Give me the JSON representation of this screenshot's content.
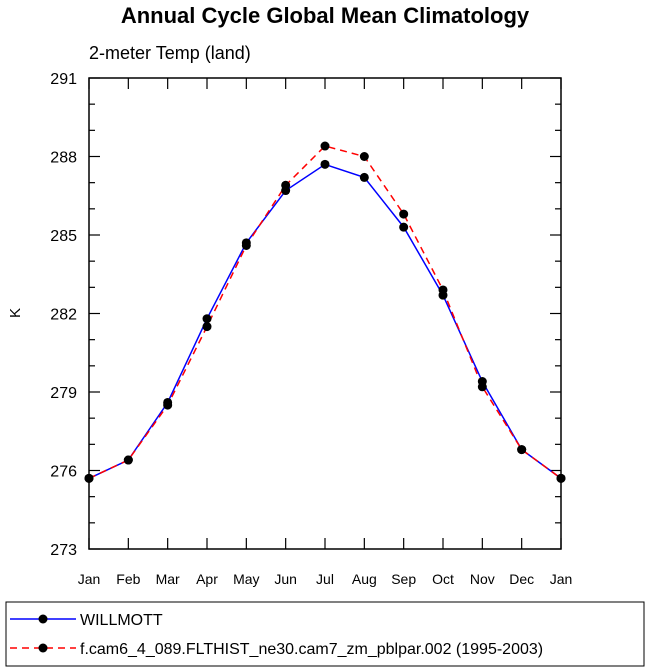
{
  "chart_data": {
    "type": "line",
    "title": "Annual Cycle Global Mean Climatology",
    "subtitle": "2-meter Temp (land)",
    "xlabel": "",
    "ylabel": "K",
    "ylim": [
      273,
      291
    ],
    "yticks": [
      "273",
      "276",
      "279",
      "282",
      "285",
      "288",
      "291"
    ],
    "categories": [
      "Jan",
      "Feb",
      "Mar",
      "Apr",
      "May",
      "Jun",
      "Jul",
      "Aug",
      "Sep",
      "Oct",
      "Nov",
      "Dec",
      "Jan"
    ],
    "series": [
      {
        "name": "WILLMOTT",
        "color": "#0000ff",
        "dash": "solid",
        "values": [
          275.7,
          276.4,
          278.6,
          281.8,
          284.7,
          286.7,
          287.7,
          287.2,
          285.3,
          282.7,
          279.4,
          276.8,
          275.7
        ]
      },
      {
        "name": "f.cam6_4_089.FLTHIST_ne30.cam7_zm_pblpar.002 (1995-2003)",
        "color": "#ff0000",
        "dash": "dashed",
        "values": [
          275.7,
          276.4,
          278.5,
          281.5,
          284.6,
          286.9,
          288.4,
          288.0,
          285.8,
          282.9,
          279.2,
          276.8,
          275.7
        ]
      }
    ],
    "legend_position": "bottom"
  }
}
